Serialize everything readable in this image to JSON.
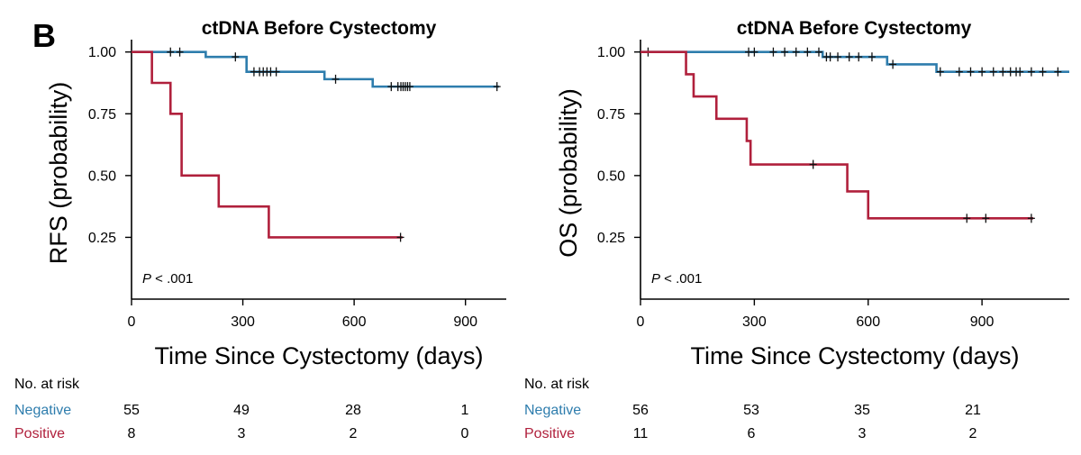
{
  "panel_label": "B",
  "colors": {
    "negative": "#2e7dad",
    "positive": "#b0203c",
    "axis": "#000000"
  },
  "chart_data": [
    {
      "type": "line",
      "subtype": "kaplan-meier",
      "title": "ctDNA Before Cystectomy",
      "xlabel": "Time Since Cystectomy (days)",
      "ylabel": "RFS (probability)",
      "xlim": [
        0,
        1010
      ],
      "ylim": [
        0,
        1.05
      ],
      "xticks": [
        0,
        300,
        600,
        900
      ],
      "xtick_labels": [
        "0",
        "300",
        "600",
        "900"
      ],
      "yticks": [
        0.25,
        0.5,
        0.75,
        1.0
      ],
      "ytick_labels": [
        "0.25",
        "0.50",
        "0.75",
        "1.00"
      ],
      "annotation": {
        "p": "P",
        "rest": " < .001"
      },
      "series": [
        {
          "name": "Negative",
          "color": "#2e7dad",
          "x": [
            0,
            200,
            310,
            520,
            650,
            990
          ],
          "y": [
            1.0,
            0.98,
            0.92,
            0.89,
            0.86,
            0.86
          ],
          "censored": [
            [
              105,
              1.0
            ],
            [
              130,
              1.0
            ],
            [
              280,
              0.98
            ],
            [
              330,
              0.92
            ],
            [
              345,
              0.92
            ],
            [
              355,
              0.92
            ],
            [
              365,
              0.92
            ],
            [
              375,
              0.92
            ],
            [
              390,
              0.92
            ],
            [
              550,
              0.89
            ],
            [
              700,
              0.86
            ],
            [
              718,
              0.86
            ],
            [
              726,
              0.86
            ],
            [
              732,
              0.86
            ],
            [
              738,
              0.86
            ],
            [
              744,
              0.86
            ],
            [
              750,
              0.86
            ],
            [
              985,
              0.86
            ]
          ]
        },
        {
          "name": "Positive",
          "color": "#b0203c",
          "x": [
            0,
            55,
            105,
            135,
            235,
            370,
            730
          ],
          "y": [
            1.0,
            0.875,
            0.75,
            0.5,
            0.375,
            0.25,
            0.25
          ],
          "censored": [
            [
              725,
              0.25
            ]
          ]
        }
      ],
      "risk_table": {
        "header": "No. at risk",
        "rows": [
          {
            "label": "Negative",
            "values": [
              "55",
              "49",
              "28",
              "1"
            ]
          },
          {
            "label": "Positive",
            "values": [
              "8",
              "3",
              "2",
              "0"
            ]
          }
        ]
      }
    },
    {
      "type": "line",
      "subtype": "kaplan-meier",
      "title": "ctDNA Before Cystectomy",
      "xlabel": "Time Since Cystectomy (days)",
      "ylabel": "OS (probability)",
      "xlim": [
        0,
        1130
      ],
      "ylim": [
        0,
        1.05
      ],
      "xticks": [
        0,
        300,
        600,
        900
      ],
      "xtick_labels": [
        "0",
        "300",
        "600",
        "900"
      ],
      "yticks": [
        0.25,
        0.5,
        0.75,
        1.0
      ],
      "ytick_labels": [
        "0.25",
        "0.50",
        "0.75",
        "1.00"
      ],
      "annotation": {
        "p": "P",
        "rest": " < .001"
      },
      "series": [
        {
          "name": "Negative",
          "color": "#2e7dad",
          "x": [
            0,
            480,
            650,
            780,
            1130
          ],
          "y": [
            1.0,
            0.98,
            0.95,
            0.92,
            0.92
          ],
          "censored": [
            [
              20,
              1.0
            ],
            [
              285,
              1.0
            ],
            [
              300,
              1.0
            ],
            [
              350,
              1.0
            ],
            [
              380,
              1.0
            ],
            [
              410,
              1.0
            ],
            [
              440,
              1.0
            ],
            [
              470,
              1.0
            ],
            [
              490,
              0.98
            ],
            [
              500,
              0.98
            ],
            [
              520,
              0.98
            ],
            [
              550,
              0.98
            ],
            [
              575,
              0.98
            ],
            [
              610,
              0.98
            ],
            [
              665,
              0.95
            ],
            [
              790,
              0.92
            ],
            [
              840,
              0.92
            ],
            [
              870,
              0.92
            ],
            [
              900,
              0.92
            ],
            [
              930,
              0.92
            ],
            [
              955,
              0.92
            ],
            [
              975,
              0.92
            ],
            [
              990,
              0.92
            ],
            [
              1000,
              0.92
            ],
            [
              1030,
              0.92
            ],
            [
              1060,
              0.92
            ],
            [
              1100,
              0.92
            ]
          ]
        },
        {
          "name": "Positive",
          "color": "#b0203c",
          "x": [
            0,
            120,
            140,
            200,
            280,
            290,
            545,
            600,
            1035
          ],
          "y": [
            1.0,
            0.91,
            0.82,
            0.73,
            0.64,
            0.545,
            0.436,
            0.327,
            0.327
          ],
          "censored": [
            [
              455,
              0.545
            ],
            [
              860,
              0.327
            ],
            [
              910,
              0.327
            ],
            [
              1030,
              0.327
            ]
          ]
        }
      ],
      "risk_table": {
        "header": "No. at risk",
        "rows": [
          {
            "label": "Negative",
            "values": [
              "56",
              "53",
              "35",
              "21"
            ]
          },
          {
            "label": "Positive",
            "values": [
              "11",
              "6",
              "3",
              "2"
            ]
          }
        ]
      }
    }
  ]
}
